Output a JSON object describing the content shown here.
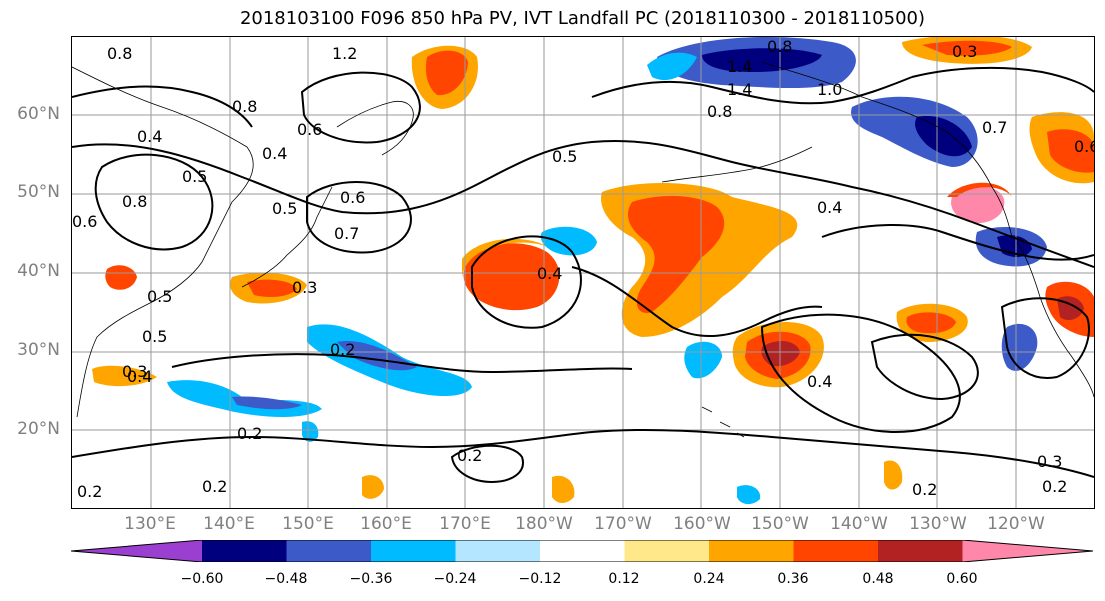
{
  "title": "2018103100 F096 850 hPa PV, IVT Landfall PC (2018110300 - 2018110500)",
  "lat_labels": [
    "60°N",
    "50°N",
    "40°N",
    "30°N",
    "20°N"
  ],
  "lon_labels": [
    "130°E",
    "140°E",
    "150°E",
    "160°E",
    "170°E",
    "180°W",
    "170°W",
    "160°W",
    "150°W",
    "140°W",
    "130°W",
    "120°W"
  ],
  "colorbar": {
    "ticks": [
      "−0.60",
      "−0.48",
      "−0.36",
      "−0.24",
      "−0.12",
      "0.12",
      "0.24",
      "0.36",
      "0.48",
      "0.60"
    ],
    "colors": [
      "#9a3fd0",
      "#00007f",
      "#3c5ac8",
      "#00bbff",
      "#b4e6ff",
      "#ffffff",
      "#ffe88a",
      "#ffa500",
      "#ff4500",
      "#b22222",
      "#ff88aa"
    ]
  },
  "contour_labels": [
    "0.8",
    "1.2",
    "1.4",
    "0.8",
    "0.8",
    "1.4",
    "1.0",
    "0.8",
    "0.4",
    "0.6",
    "0.5",
    "0.4",
    "0.5",
    "0.8",
    "0.6",
    "0.5",
    "0.6",
    "0.7",
    "0.5",
    "0.4",
    "0.3",
    "0.4",
    "0.4",
    "0.2",
    "0.2",
    "0.2",
    "0.2",
    "0.4",
    "0.2",
    "0.3",
    "0.7",
    "0.6",
    "0.5",
    "0.3",
    "0.3",
    "0.2",
    "0.2"
  ]
}
